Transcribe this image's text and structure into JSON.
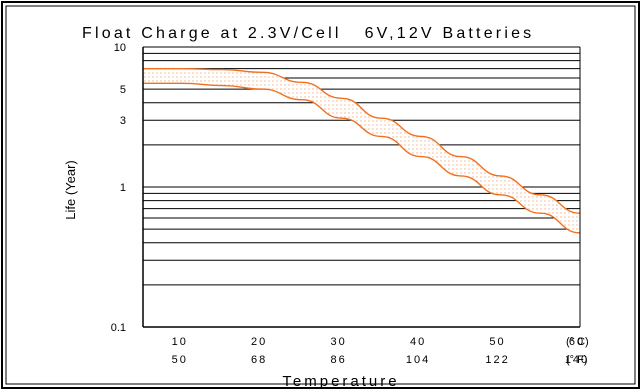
{
  "chart_data": {
    "type": "area",
    "title": "Float Charge at 2.3V/Cell   6V,12V Batteries",
    "ylabel": "Life (Year)",
    "xlabel": "Temperature",
    "yscale": "log",
    "ylim": [
      0.1,
      10
    ],
    "xlim": [
      5,
      60
    ],
    "ytick_labels": [
      {
        "value": 10,
        "label": "10"
      },
      {
        "value": 5,
        "label": "5"
      },
      {
        "value": 3,
        "label": "3"
      },
      {
        "value": 1,
        "label": "1"
      },
      {
        "value": 0.1,
        "label": "0.1"
      }
    ],
    "xtick_labels_c": [
      {
        "value": 10,
        "label": "10"
      },
      {
        "value": 20,
        "label": "20"
      },
      {
        "value": 30,
        "label": "30"
      },
      {
        "value": 40,
        "label": "40"
      },
      {
        "value": 50,
        "label": "50"
      },
      {
        "value": 60,
        "label": "60"
      }
    ],
    "xtick_labels_f": [
      "50",
      "68",
      "86",
      "104",
      "122",
      "140"
    ],
    "unit_c": "(° C)",
    "unit_f": "(° F)",
    "grid": true,
    "band": {
      "x": [
        5,
        10,
        15,
        20,
        25,
        30,
        35,
        40,
        45,
        50,
        55,
        60
      ],
      "upper": [
        7.0,
        7.0,
        6.9,
        6.6,
        5.6,
        4.3,
        3.1,
        2.3,
        1.65,
        1.2,
        0.88,
        0.65
      ],
      "lower": [
        5.5,
        5.5,
        5.3,
        5.0,
        4.2,
        3.1,
        2.3,
        1.65,
        1.2,
        0.88,
        0.65,
        0.47
      ]
    },
    "colors": {
      "band_edge": "#f07020",
      "band_dots": "#f7b088",
      "grid": "#000000"
    }
  }
}
